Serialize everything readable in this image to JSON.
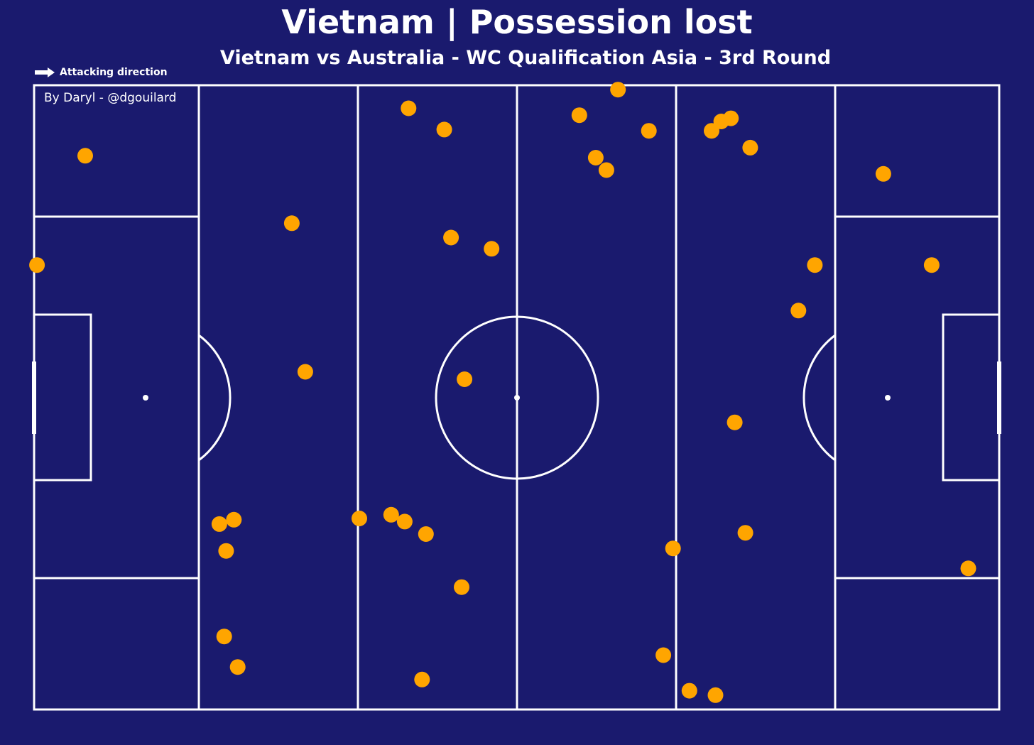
{
  "colors": {
    "background": "#1a1a6e",
    "lines": "#ffffff",
    "points": "#ffa500"
  },
  "header": {
    "title": "Vietnam | Possession lost",
    "subtitle": "Vietnam vs Australia - WC Qualification Asia - 3rd Round"
  },
  "legend": {
    "attacking_direction_label": "Attacking direction",
    "arrow_icon": "arrow-right-icon"
  },
  "credit": "By Daryl - @dgouilard",
  "chart_data": {
    "type": "scatter",
    "title": "Vietnam | Possession lost",
    "subtitle": "Vietnam vs Australia - WC Qualification Asia - 3rd Round",
    "series": [
      {
        "points": [
          {
            "x": 0.3,
            "y": 28.8
          },
          {
            "x": 5.3,
            "y": 11.3
          },
          {
            "x": 19.2,
            "y": 70.3
          },
          {
            "x": 19.7,
            "y": 88.3
          },
          {
            "x": 19.9,
            "y": 74.6
          },
          {
            "x": 20.7,
            "y": 69.6
          },
          {
            "x": 21.1,
            "y": 93.2
          },
          {
            "x": 26.7,
            "y": 22.1
          },
          {
            "x": 28.1,
            "y": 45.9
          },
          {
            "x": 33.7,
            "y": 69.4
          },
          {
            "x": 37.0,
            "y": 68.8
          },
          {
            "x": 38.4,
            "y": 69.9
          },
          {
            "x": 38.8,
            "y": 3.7
          },
          {
            "x": 40.2,
            "y": 95.2
          },
          {
            "x": 40.6,
            "y": 71.9
          },
          {
            "x": 42.5,
            "y": 7.1
          },
          {
            "x": 43.2,
            "y": 24.4
          },
          {
            "x": 44.3,
            "y": 80.4
          },
          {
            "x": 44.6,
            "y": 47.1
          },
          {
            "x": 47.4,
            "y": 26.2
          },
          {
            "x": 56.5,
            "y": 4.8
          },
          {
            "x": 58.2,
            "y": 11.6
          },
          {
            "x": 59.3,
            "y": 13.6
          },
          {
            "x": 60.5,
            "y": 0.7
          },
          {
            "x": 63.7,
            "y": 7.3
          },
          {
            "x": 65.2,
            "y": 91.3
          },
          {
            "x": 66.2,
            "y": 74.2
          },
          {
            "x": 67.9,
            "y": 97.0
          },
          {
            "x": 70.2,
            "y": 7.3
          },
          {
            "x": 70.6,
            "y": 97.7
          },
          {
            "x": 71.2,
            "y": 5.8
          },
          {
            "x": 72.2,
            "y": 5.3
          },
          {
            "x": 72.6,
            "y": 54.0
          },
          {
            "x": 73.7,
            "y": 71.7
          },
          {
            "x": 74.2,
            "y": 10.0
          },
          {
            "x": 79.2,
            "y": 36.1
          },
          {
            "x": 80.9,
            "y": 28.8
          },
          {
            "x": 88.0,
            "y": 14.2
          },
          {
            "x": 93.0,
            "y": 28.8
          },
          {
            "x": 96.8,
            "y": 77.4
          }
        ]
      }
    ],
    "xlim": [
      0,
      100
    ],
    "ylim": [
      0,
      100
    ],
    "attacking_direction": "left-to-right",
    "grid": false
  }
}
